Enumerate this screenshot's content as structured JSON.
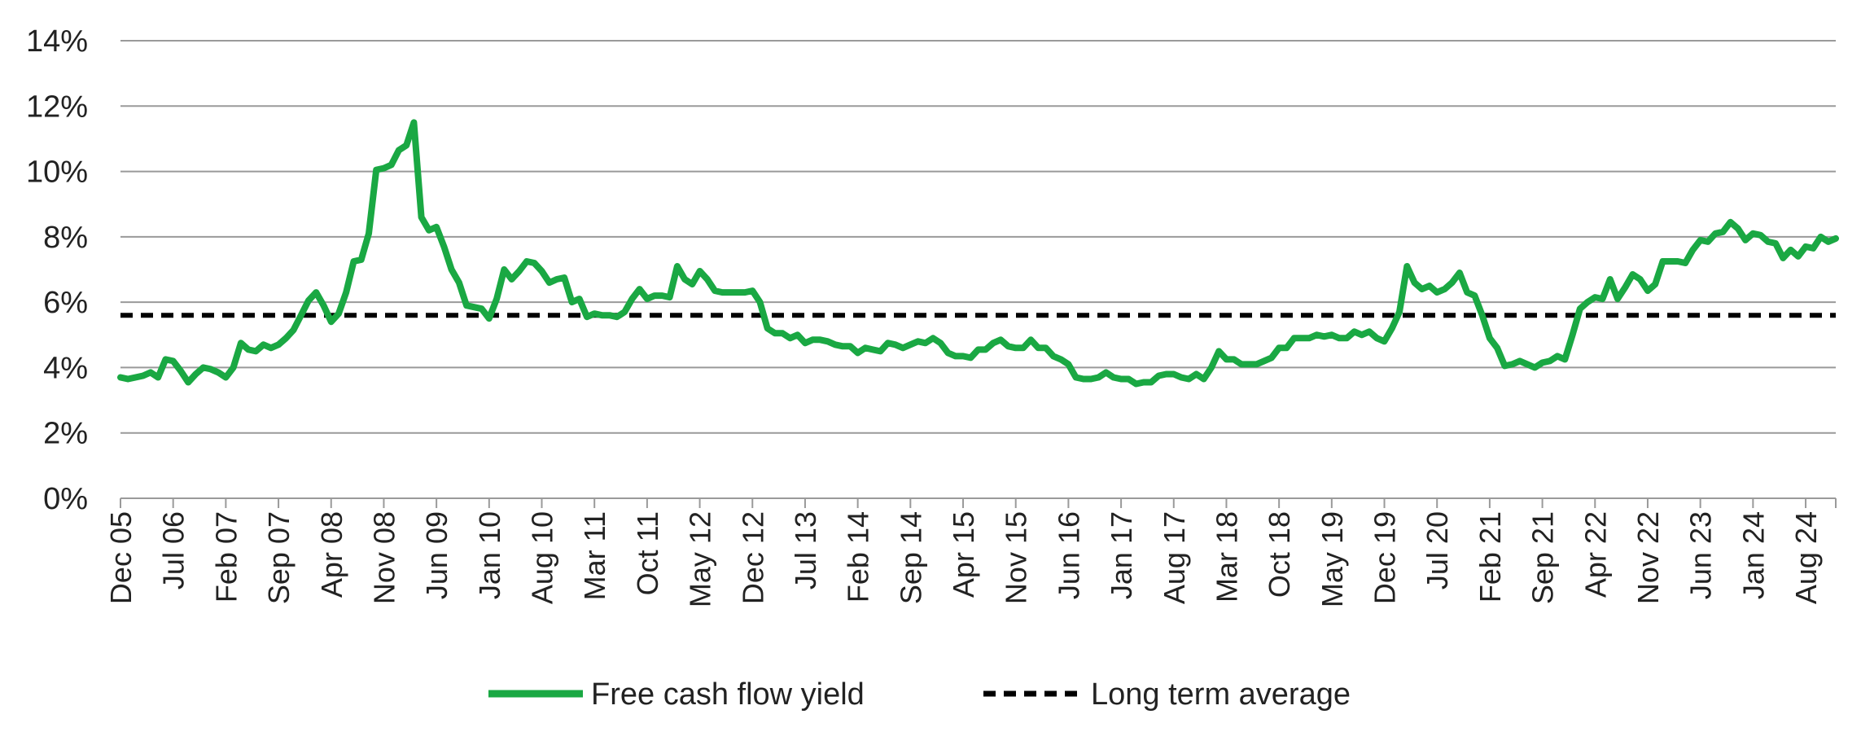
{
  "chart_data": {
    "type": "line",
    "x_tick_labels": [
      "Dec 05",
      "Jul 06",
      "Feb 07",
      "Sep 07",
      "Apr 08",
      "Nov 08",
      "Jun 09",
      "Jan 10",
      "Aug 10",
      "Mar 11",
      "Oct 11",
      "May 12",
      "Dec 12",
      "Jul 13",
      "Feb 14",
      "Sep 14",
      "Apr 15",
      "Nov 15",
      "Jun 16",
      "Jan 17",
      "Aug 17",
      "Mar 18",
      "Oct 18",
      "May 19",
      "Dec 19",
      "Jul 20",
      "Feb 21",
      "Sep 21",
      "Apr 22",
      "Nov 22",
      "Jun 23",
      "Jan 24",
      "Aug 24"
    ],
    "y_tick_labels": [
      "0%",
      "2%",
      "4%",
      "6%",
      "8%",
      "10%",
      "12%",
      "14%"
    ],
    "ylim": [
      0,
      14
    ],
    "y_unit": "%",
    "grid": "horizontal",
    "legend_position": "bottom",
    "x_start": "Dec 05",
    "x_end": "Dec 24",
    "series": [
      {
        "name": "Free cash flow yield",
        "color": "#1aa843",
        "style": "solid",
        "values": [
          3.7,
          3.65,
          3.7,
          3.75,
          3.85,
          3.7,
          4.25,
          4.2,
          3.9,
          3.55,
          3.8,
          4.0,
          3.95,
          3.85,
          3.7,
          4.0,
          4.75,
          4.55,
          4.5,
          4.7,
          4.6,
          4.7,
          4.9,
          5.15,
          5.6,
          6.05,
          6.3,
          5.9,
          5.4,
          5.65,
          6.3,
          7.25,
          7.3,
          8.1,
          10.05,
          10.1,
          10.2,
          10.65,
          10.8,
          11.5,
          8.6,
          8.2,
          8.3,
          7.7,
          7.0,
          6.6,
          5.9,
          5.85,
          5.8,
          5.5,
          6.1,
          7.0,
          6.7,
          6.95,
          7.25,
          7.2,
          6.95,
          6.6,
          6.7,
          6.75,
          6.0,
          6.1,
          5.55,
          5.65,
          5.6,
          5.6,
          5.55,
          5.7,
          6.1,
          6.4,
          6.1,
          6.2,
          6.2,
          6.15,
          7.1,
          6.7,
          6.55,
          6.95,
          6.7,
          6.35,
          6.3,
          6.3,
          6.3,
          6.3,
          6.35,
          6.0,
          5.2,
          5.05,
          5.05,
          4.9,
          5.0,
          4.75,
          4.85,
          4.85,
          4.8,
          4.7,
          4.65,
          4.65,
          4.45,
          4.6,
          4.55,
          4.5,
          4.75,
          4.7,
          4.6,
          4.7,
          4.8,
          4.75,
          4.9,
          4.75,
          4.45,
          4.35,
          4.35,
          4.3,
          4.55,
          4.55,
          4.75,
          4.85,
          4.65,
          4.6,
          4.6,
          4.85,
          4.6,
          4.6,
          4.35,
          4.25,
          4.1,
          3.7,
          3.65,
          3.65,
          3.7,
          3.85,
          3.7,
          3.65,
          3.65,
          3.5,
          3.55,
          3.55,
          3.75,
          3.8,
          3.8,
          3.7,
          3.65,
          3.8,
          3.65,
          4.0,
          4.5,
          4.25,
          4.25,
          4.1,
          4.1,
          4.1,
          4.2,
          4.3,
          4.6,
          4.6,
          4.9,
          4.9,
          4.9,
          5.0,
          4.95,
          5.0,
          4.9,
          4.9,
          5.1,
          5.0,
          5.1,
          4.9,
          4.8,
          5.2,
          5.7,
          7.1,
          6.6,
          6.4,
          6.5,
          6.3,
          6.4,
          6.6,
          6.9,
          6.3,
          6.2,
          5.6,
          4.9,
          4.6,
          4.05,
          4.1,
          4.2,
          4.1,
          4.0,
          4.15,
          4.2,
          4.35,
          4.25,
          5.0,
          5.8,
          6.0,
          6.15,
          6.1,
          6.7,
          6.1,
          6.45,
          6.85,
          6.7,
          6.35,
          6.55,
          7.25,
          7.25,
          7.25,
          7.2,
          7.6,
          7.9,
          7.85,
          8.1,
          8.15,
          8.45,
          8.25,
          7.9,
          8.1,
          8.05,
          7.85,
          7.8,
          7.35,
          7.6,
          7.4,
          7.7,
          7.65,
          8.0,
          7.85,
          7.95
        ]
      },
      {
        "name": "Long term average",
        "color": "#000000",
        "style": "dashed",
        "value": 5.6
      }
    ]
  }
}
